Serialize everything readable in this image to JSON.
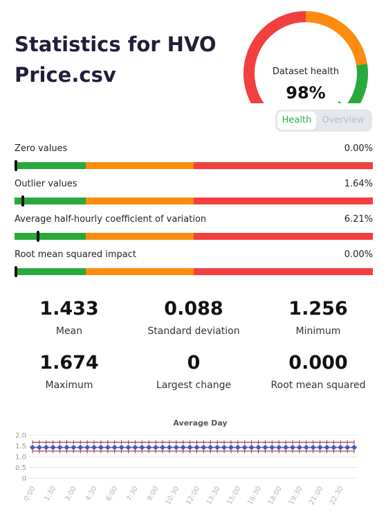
{
  "page": {
    "title": "Statistics for HVO Price.csv"
  },
  "gauge": {
    "label": "Dataset health",
    "value_text": "98%",
    "value": 0.98,
    "colors": {
      "red": "#f23f3f",
      "orange": "#fb8c10",
      "green": "#28a93c"
    }
  },
  "view_toggle": {
    "active": "Health",
    "inactive": "Overview"
  },
  "metrics": [
    {
      "label": "Zero values",
      "value": "0.00%",
      "level": 0.0
    },
    {
      "label": "Outlier values",
      "value": "1.64%",
      "level": 0.02
    },
    {
      "label": "Average half-hourly coefficient of variation",
      "value": "6.21%",
      "level": 0.062
    },
    {
      "label": "Root mean squared impact",
      "value": "0.00%",
      "level": 0.0
    }
  ],
  "stats": [
    {
      "value": "1.433",
      "label": "Mean"
    },
    {
      "value": "0.088",
      "label": "Standard deviation"
    },
    {
      "value": "1.256",
      "label": "Minimum"
    },
    {
      "value": "1.674",
      "label": "Maximum"
    },
    {
      "value": "0",
      "label": "Largest change"
    },
    {
      "value": "0.000",
      "label": "Root mean squared"
    }
  ],
  "chart_data": {
    "type": "line",
    "title": "Average Day",
    "xlabel": "",
    "ylabel": "",
    "ylim": [
      0,
      2.0
    ],
    "yticks": [
      "0",
      "0.5",
      "1.0",
      "1.5",
      "2.0"
    ],
    "x": [
      "0:00",
      "0:30",
      "1:00",
      "1:30",
      "2:00",
      "2:30",
      "3:00",
      "3:30",
      "4:00",
      "4:30",
      "5:00",
      "5:30",
      "6:00",
      "6:30",
      "7:00",
      "7:30",
      "8:00",
      "8:30",
      "9:00",
      "9:30",
      "10:00",
      "10:30",
      "11:00",
      "11:30",
      "12:00",
      "12:30",
      "13:00",
      "13:30",
      "14:00",
      "14:30",
      "15:00",
      "15:30",
      "16:00",
      "16:30",
      "17:00",
      "17:30",
      "18:00",
      "18:30",
      "19:00",
      "19:30",
      "20:00",
      "20:30",
      "21:00",
      "21:30",
      "22:00",
      "22:30",
      "23:00",
      "23:30"
    ],
    "xtick_labels": [
      "0:00",
      "1:30",
      "3:00",
      "4:30",
      "6:00",
      "7:30",
      "9:00",
      "10:30",
      "12:00",
      "13:30",
      "15:00",
      "16:30",
      "18:00",
      "19:30",
      "21:00",
      "22:30"
    ],
    "series": [
      {
        "values": [
          1.43,
          1.43,
          1.43,
          1.43,
          1.43,
          1.43,
          1.43,
          1.43,
          1.43,
          1.43,
          1.43,
          1.43,
          1.43,
          1.43,
          1.43,
          1.43,
          1.43,
          1.43,
          1.43,
          1.43,
          1.43,
          1.43,
          1.43,
          1.43,
          1.43,
          1.43,
          1.43,
          1.43,
          1.43,
          1.43,
          1.43,
          1.43,
          1.43,
          1.43,
          1.43,
          1.43,
          1.43,
          1.43,
          1.43,
          1.43,
          1.43,
          1.43,
          1.43,
          1.43,
          1.43,
          1.43,
          1.43,
          1.43
        ],
        "color": "#3b5cc7"
      },
      {
        "values": [
          1.67,
          1.67,
          1.67,
          1.67,
          1.67,
          1.67,
          1.67,
          1.67,
          1.67,
          1.67,
          1.67,
          1.67,
          1.67,
          1.67,
          1.67,
          1.67,
          1.67,
          1.67,
          1.67,
          1.67,
          1.67,
          1.67,
          1.67,
          1.67,
          1.67,
          1.67,
          1.67,
          1.67,
          1.67,
          1.67,
          1.67,
          1.67,
          1.67,
          1.67,
          1.67,
          1.67,
          1.67,
          1.67,
          1.67,
          1.67,
          1.67,
          1.67,
          1.67,
          1.67,
          1.67,
          1.67,
          1.67,
          1.67
        ],
        "color": "#a03040"
      },
      {
        "values": [
          1.26,
          1.26,
          1.26,
          1.26,
          1.26,
          1.26,
          1.26,
          1.26,
          1.26,
          1.26,
          1.26,
          1.26,
          1.26,
          1.26,
          1.26,
          1.26,
          1.26,
          1.26,
          1.26,
          1.26,
          1.26,
          1.26,
          1.26,
          1.26,
          1.26,
          1.26,
          1.26,
          1.26,
          1.26,
          1.26,
          1.26,
          1.26,
          1.26,
          1.26,
          1.26,
          1.26,
          1.26,
          1.26,
          1.26,
          1.26,
          1.26,
          1.26,
          1.26,
          1.26,
          1.26,
          1.26,
          1.26,
          1.26
        ],
        "color": "#a03040"
      }
    ],
    "grid": true,
    "legend": "none"
  }
}
